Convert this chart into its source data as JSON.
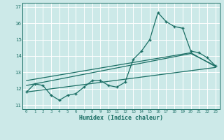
{
  "xlabel": "Humidex (Indice chaleur)",
  "bg_color": "#cce9e8",
  "grid_color": "#ffffff",
  "line_color": "#1a6e64",
  "xlim": [
    -0.5,
    23.5
  ],
  "ylim": [
    10.75,
    17.25
  ],
  "yticks": [
    11,
    12,
    13,
    14,
    15,
    16,
    17
  ],
  "xticks": [
    0,
    1,
    2,
    3,
    4,
    5,
    6,
    7,
    8,
    9,
    10,
    11,
    12,
    13,
    14,
    15,
    16,
    17,
    18,
    19,
    20,
    21,
    22,
    23
  ],
  "series1_x": [
    0,
    1,
    2,
    3,
    4,
    5,
    6,
    7,
    8,
    9,
    10,
    11,
    12,
    13,
    14,
    15,
    16,
    17,
    18,
    19,
    20,
    21,
    22,
    23
  ],
  "series1_y": [
    11.8,
    12.3,
    12.2,
    11.6,
    11.3,
    11.6,
    11.7,
    12.1,
    12.5,
    12.5,
    12.2,
    12.1,
    12.4,
    13.8,
    14.3,
    15.0,
    16.65,
    16.1,
    15.8,
    15.7,
    14.3,
    14.2,
    13.9,
    13.4
  ],
  "series2_x": [
    0,
    23
  ],
  "series2_y": [
    11.8,
    13.3
  ],
  "series3_x": [
    0,
    20,
    23
  ],
  "series3_y": [
    12.2,
    14.15,
    13.4
  ],
  "series4_x": [
    0,
    20,
    23
  ],
  "series4_y": [
    12.5,
    14.2,
    13.35
  ]
}
